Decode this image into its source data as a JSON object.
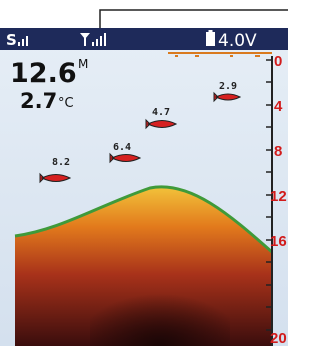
{
  "status_bar": {
    "signal_label": "S",
    "battery": "4.0V"
  },
  "depth": {
    "value": "12.6",
    "unit": "M"
  },
  "temperature": {
    "value": "2.7",
    "unit": "°C"
  },
  "fish": [
    {
      "depth_label": "8.2"
    },
    {
      "depth_label": "6.4"
    },
    {
      "depth_label": "4.7"
    },
    {
      "depth_label": "2.9"
    }
  ],
  "scale": {
    "ticks": [
      "0",
      "4",
      "8",
      "12",
      "16",
      "20"
    ]
  }
}
